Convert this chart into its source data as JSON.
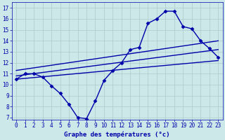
{
  "xlabel": "Graphe des températures (°c)",
  "ylabel": "",
  "bg_color": "#cce8e8",
  "grid_color": "#aacccc",
  "line_color": "#0000aa",
  "xticks": [
    0,
    1,
    2,
    3,
    4,
    5,
    6,
    7,
    8,
    9,
    10,
    11,
    12,
    13,
    14,
    15,
    16,
    17,
    18,
    19,
    20,
    21,
    22,
    23
  ],
  "yticks": [
    7,
    8,
    9,
    10,
    11,
    12,
    13,
    14,
    15,
    16,
    17
  ],
  "ylim": [
    6.8,
    17.5
  ],
  "xlim": [
    -0.5,
    23.5
  ],
  "line1_x": [
    0,
    1,
    2,
    3,
    4,
    5,
    6,
    7,
    8,
    9,
    10,
    11,
    12,
    13,
    14,
    15,
    16,
    17,
    18,
    19,
    20,
    21,
    22,
    23
  ],
  "line1_y": [
    10.5,
    11.0,
    11.0,
    10.7,
    9.9,
    9.2,
    8.2,
    7.0,
    6.9,
    8.5,
    10.4,
    11.3,
    12.0,
    13.2,
    13.4,
    15.6,
    16.0,
    16.7,
    16.7,
    15.3,
    15.1,
    14.0,
    13.3,
    12.5
  ],
  "line2_x": [
    0,
    23
  ],
  "line2_y": [
    10.8,
    13.2
  ],
  "line3_x": [
    0,
    23
  ],
  "line3_y": [
    11.3,
    14.0
  ],
  "line4_x": [
    0,
    23
  ],
  "line4_y": [
    10.5,
    12.2
  ],
  "marker": "D",
  "markersize": 2.5,
  "linewidth": 1.0,
  "tick_fontsize": 5.5,
  "xlabel_fontsize": 6.5
}
